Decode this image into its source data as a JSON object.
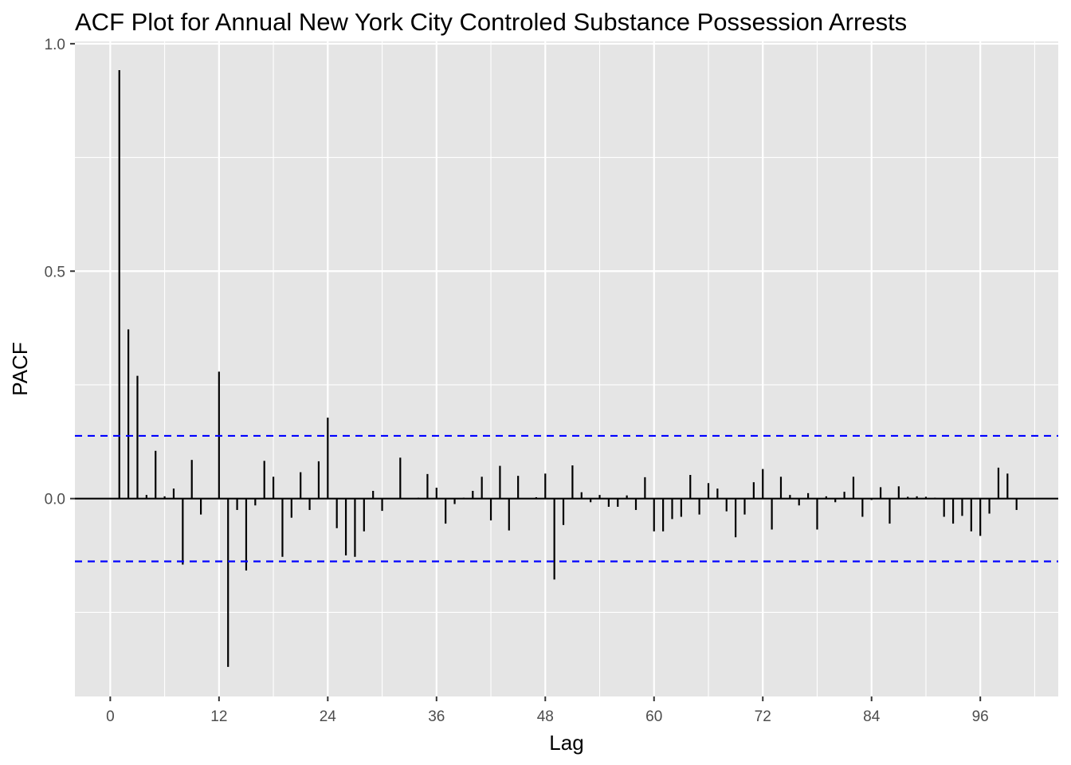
{
  "chart_data": {
    "type": "bar",
    "title": "ACF Plot for Annual New York City Controled Substance Possession Arrests",
    "xlabel": "Lag",
    "ylabel": "PACF",
    "xlim": [
      -3.9,
      104.6
    ],
    "ylim": [
      -0.435,
      1.005
    ],
    "x_ticks": [
      0,
      12,
      24,
      36,
      48,
      60,
      72,
      84,
      96
    ],
    "x_tick_labels": [
      "0",
      "12",
      "24",
      "36",
      "48",
      "60",
      "72",
      "84",
      "96"
    ],
    "y_ticks": [
      0.0,
      0.5,
      1.0
    ],
    "y_tick_labels": [
      "0.0",
      "0.5",
      "1.0"
    ],
    "y_minor_ticks": [
      -0.25,
      0.25,
      0.75
    ],
    "grid": true,
    "confidence_band": 0.138,
    "colors": {
      "panel": "#e5e5e5",
      "grid": "#ffffff",
      "bars": "#000000",
      "zero_line": "#000000",
      "confidence_band": "#0000ff"
    },
    "series": [
      {
        "x": [
          1,
          2,
          3,
          4,
          5,
          6,
          7,
          8,
          9,
          10,
          11,
          12,
          13,
          14,
          15,
          16,
          17,
          18,
          19,
          20,
          21,
          22,
          23,
          24,
          25,
          26,
          27,
          28,
          29,
          30,
          31,
          32,
          33,
          34,
          35,
          36,
          37,
          38,
          39,
          40,
          41,
          42,
          43,
          44,
          45,
          46,
          47,
          48,
          49,
          50,
          51,
          52,
          53,
          54,
          55,
          56,
          57,
          58,
          59,
          60,
          61,
          62,
          63,
          64,
          65,
          66,
          67,
          68,
          69,
          70,
          71,
          72,
          73,
          74,
          75,
          76,
          77,
          78,
          79,
          80,
          81,
          82,
          83,
          84,
          85,
          86,
          87,
          88,
          89,
          90,
          91,
          92,
          93,
          94,
          95,
          96,
          97,
          98,
          99,
          100
        ],
        "values": [
          0.942,
          0.372,
          0.27,
          0.008,
          0.105,
          0.005,
          0.022,
          -0.145,
          0.085,
          -0.035,
          0.0,
          0.279,
          -0.37,
          -0.025,
          -0.158,
          -0.015,
          0.083,
          0.048,
          -0.128,
          -0.042,
          0.058,
          -0.025,
          0.082,
          0.178,
          -0.065,
          -0.125,
          -0.128,
          -0.072,
          0.017,
          -0.027,
          0.0,
          0.09,
          0.0,
          0.002,
          0.054,
          0.024,
          -0.055,
          -0.012,
          0.002,
          0.017,
          0.048,
          -0.048,
          0.072,
          -0.07,
          0.05,
          0.0,
          0.003,
          0.055,
          -0.178,
          -0.058,
          0.073,
          0.014,
          -0.008,
          0.008,
          -0.018,
          -0.018,
          0.007,
          -0.025,
          0.047,
          -0.072,
          -0.072,
          -0.045,
          -0.04,
          0.052,
          -0.035,
          0.034,
          0.022,
          -0.028,
          -0.085,
          -0.035,
          0.036,
          0.065,
          -0.068,
          0.048,
          0.008,
          -0.015,
          0.012,
          -0.068,
          0.005,
          -0.008,
          0.015,
          0.048,
          -0.04,
          -0.003,
          0.025,
          -0.055,
          0.027,
          0.004,
          0.005,
          0.004,
          0.002,
          -0.04,
          -0.055,
          -0.038,
          -0.072,
          -0.082,
          -0.033,
          0.068,
          0.055,
          -0.025
        ]
      }
    ]
  }
}
